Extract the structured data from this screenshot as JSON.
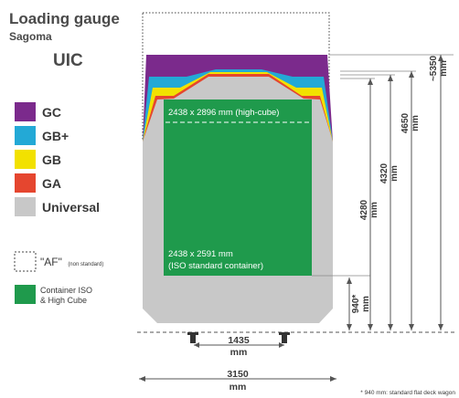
{
  "header": {
    "title": "Loading gauge",
    "subtitle": "Sagoma",
    "standard": "UIC"
  },
  "legend": {
    "items": [
      {
        "label": "GC",
        "color": "#7b2a8c"
      },
      {
        "label": "GB+",
        "color": "#23a9d6"
      },
      {
        "label": "GB",
        "color": "#f2e100"
      },
      {
        "label": "GA",
        "color": "#e5462f"
      },
      {
        "label": "Universal",
        "color": "#c8c8c8"
      }
    ],
    "af_label": "\"AF\"",
    "af_note": "(non standard)",
    "container_label_line1": "Container ISO",
    "container_label_line2": "& High Cube",
    "container_color": "#1f9a4c"
  },
  "diagram": {
    "high_cube_label": "2438 x 2896 mm (high-cube)",
    "iso_label_line1": "2438 x 2591 mm",
    "iso_label_line2": "(ISO standard container)"
  },
  "dimensions": {
    "gauge": {
      "value": "1435",
      "unit": "mm"
    },
    "width": {
      "value": "3150",
      "unit": "mm"
    },
    "h940": {
      "value": "940*",
      "unit": "mm"
    },
    "h4280": {
      "value": "4280",
      "unit": "mm"
    },
    "h4320": {
      "value": "4320",
      "unit": "mm"
    },
    "h4650": {
      "value": "4650",
      "unit": "mm"
    },
    "h5350": {
      "value": "~5350",
      "unit": "mm"
    }
  },
  "footnote": "* 940 mm: standard flat deck wagon"
}
